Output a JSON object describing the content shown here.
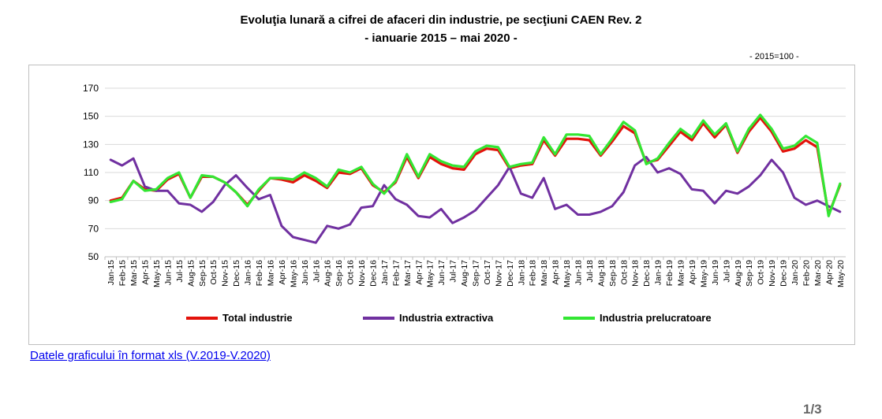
{
  "header": {
    "title": "Evoluţia lunară a cifrei de afaceri din industrie, pe secţiuni CAEN Rev. 2",
    "subtitle": "-  ianuarie 2015 – mai 2020 -",
    "base_note": "- 2015=100 -"
  },
  "link_text": "Datele graficului în format xls (V.2019-V.2020)",
  "page_number": "1/3",
  "chart_data": {
    "type": "line",
    "ylim": [
      50,
      170
    ],
    "yticks": [
      50,
      70,
      90,
      110,
      130,
      150,
      170
    ],
    "grid": true,
    "legend_position": "bottom",
    "x": [
      "Jan-15",
      "Feb-15",
      "Mar-15",
      "Apr-15",
      "May-15",
      "Jun-15",
      "Jul-15",
      "Aug-15",
      "Sep-15",
      "Oct-15",
      "Nov-15",
      "Dec-15",
      "Jan-16",
      "Feb-16",
      "Mar-16",
      "Apr-16",
      "May-16",
      "Jun-16",
      "Jul-16",
      "Aug-16",
      "Sep-16",
      "Oct-16",
      "Nov-16",
      "Dec-16",
      "Jan-17",
      "Feb-17",
      "Mar-17",
      "Apr-17",
      "May-17",
      "Jun-17",
      "Jul-17",
      "Aug-17",
      "Sep-17",
      "Oct-17",
      "Nov-17",
      "Dec-17",
      "Jan-18",
      "Feb-18",
      "Mar-18",
      "Apr-18",
      "May-18",
      "Jun-18",
      "Jul-18",
      "Aug-18",
      "Sep-18",
      "Oct-18",
      "Nov-18",
      "Dec-18",
      "Jan-19",
      "Feb-19",
      "Mar-19",
      "Apr-19",
      "May-19",
      "Jun-19",
      "Jul-19",
      "Aug-19",
      "Sep-19",
      "Oct-19",
      "Nov-19",
      "Dec-19",
      "Jan-20",
      "Feb-20",
      "Mar-20",
      "Apr-20",
      "May-20"
    ],
    "series": [
      {
        "name": "Total industrie",
        "color": "#e3120b",
        "values": [
          90,
          92,
          104,
          98,
          97,
          105,
          109,
          92,
          107,
          107,
          103,
          96,
          87,
          97,
          106,
          105,
          103,
          108,
          104,
          99,
          110,
          109,
          113,
          101,
          96,
          103,
          121,
          106,
          121,
          116,
          113,
          112,
          123,
          127,
          126,
          113,
          115,
          116,
          133,
          122,
          134,
          134,
          133,
          122,
          132,
          143,
          138,
          117,
          119,
          129,
          139,
          133,
          145,
          135,
          144,
          124,
          139,
          149,
          139,
          125,
          127,
          133,
          128,
          80,
          101
        ]
      },
      {
        "name": "Industria extractiva",
        "color": "#7030a0",
        "values": [
          119,
          115,
          120,
          100,
          97,
          97,
          88,
          87,
          82,
          89,
          101,
          108,
          99,
          91,
          94,
          72,
          64,
          62,
          60,
          72,
          70,
          73,
          85,
          86,
          101,
          91,
          87,
          79,
          78,
          84,
          74,
          78,
          83,
          92,
          101,
          114,
          95,
          92,
          106,
          84,
          87,
          80,
          80,
          82,
          86,
          96,
          115,
          121,
          110,
          113,
          109,
          98,
          97,
          88,
          97,
          95,
          100,
          108,
          119,
          110,
          92,
          87,
          90,
          86,
          82
        ]
      },
      {
        "name": "Industria prelucratoare",
        "color": "#33e633",
        "values": [
          89,
          91,
          104,
          97,
          98,
          106,
          110,
          92,
          108,
          107,
          103,
          96,
          86,
          98,
          106,
          106,
          105,
          110,
          106,
          100,
          112,
          110,
          114,
          102,
          95,
          104,
          123,
          107,
          123,
          118,
          115,
          114,
          125,
          129,
          128,
          114,
          116,
          117,
          135,
          123,
          137,
          137,
          136,
          123,
          134,
          146,
          140,
          116,
          120,
          131,
          141,
          135,
          147,
          137,
          145,
          125,
          141,
          151,
          141,
          127,
          129,
          136,
          131,
          79,
          102
        ]
      }
    ]
  }
}
